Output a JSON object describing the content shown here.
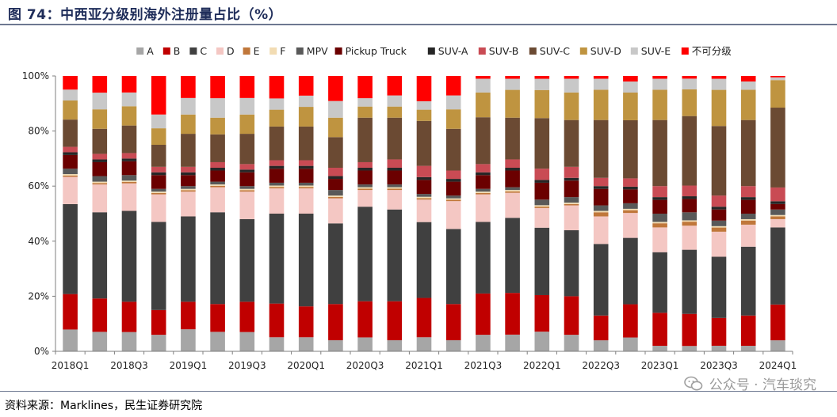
{
  "figure_title": "图 74：中西亚分级别海外注册量占比（%）",
  "source_text": "资料来源：Marklines，民生证券研究院",
  "watermark": "公众号 · 汽车琰究",
  "chart_data": {
    "type": "bar",
    "stacked": true,
    "ylim": [
      0,
      100
    ],
    "yticks": [
      "0%",
      "20%",
      "40%",
      "60%",
      "80%",
      "100%"
    ],
    "xtick_labels": [
      "2018Q1",
      "2018Q3",
      "2019Q1",
      "2019Q3",
      "2020Q1",
      "2020Q3",
      "2021Q1",
      "2021Q3",
      "2022Q1",
      "2022Q3",
      "2023Q1",
      "2023Q3",
      "2024Q1"
    ],
    "legend_position": "top",
    "categories": [
      "2018Q1",
      "2018Q2",
      "2018Q3",
      "2018Q4",
      "2019Q1",
      "2019Q2",
      "2019Q3",
      "2019Q4",
      "2020Q1",
      "2020Q2",
      "2020Q3",
      "2020Q4",
      "2021Q1",
      "2021Q2",
      "2021Q3",
      "2021Q4",
      "2022Q1",
      "2022Q2",
      "2022Q3",
      "2022Q4",
      "2023Q1",
      "2023Q2",
      "2023Q3",
      "2023Q4",
      "2024Q1"
    ],
    "series": [
      {
        "name": "A",
        "color": "#a6a6a6",
        "values": [
          8,
          7,
          7,
          6,
          8,
          7,
          7,
          5,
          5,
          4,
          5,
          4,
          5,
          4,
          6,
          6,
          7,
          6,
          4,
          5,
          2,
          2,
          2,
          2,
          4
        ]
      },
      {
        "name": "B",
        "color": "#c00000",
        "values": [
          13,
          12,
          11,
          9,
          10,
          10,
          11,
          12,
          11,
          13,
          13,
          14,
          14,
          13,
          15,
          15,
          13,
          14,
          9,
          12,
          12,
          12,
          10,
          11,
          13
        ]
      },
      {
        "name": "C",
        "color": "#404040",
        "values": [
          33,
          31,
          33,
          32,
          31,
          33,
          30,
          32,
          33,
          29,
          34,
          33,
          27,
          27,
          26,
          27,
          24,
          24,
          26,
          24,
          22,
          24,
          22,
          25,
          28
        ]
      },
      {
        "name": "D",
        "color": "#f4c7c3",
        "values": [
          10,
          10,
          10,
          10,
          9,
          9,
          10,
          9,
          9,
          9,
          6,
          7,
          8,
          10,
          10,
          9,
          7,
          9,
          10,
          9,
          9,
          9,
          9,
          8,
          3
        ]
      },
      {
        "name": "E",
        "color": "#c0773a",
        "values": [
          0.5,
          0.5,
          0.5,
          0.5,
          0.5,
          0.5,
          0.5,
          0.5,
          0.5,
          0.5,
          0.5,
          0.5,
          0.5,
          0.5,
          0.5,
          0.5,
          0.5,
          0.5,
          1.5,
          1,
          1.5,
          1.5,
          1.5,
          1.5,
          1
        ]
      },
      {
        "name": "F",
        "color": "#f2dcb3",
        "values": [
          0.5,
          0.5,
          0.5,
          0.5,
          0.5,
          0.5,
          0.5,
          0.5,
          0.5,
          0.5,
          0.5,
          0.5,
          0.5,
          0.5,
          0.5,
          0.5,
          0.5,
          0.5,
          0.5,
          0.5,
          0.5,
          0.5,
          0.5,
          0.5,
          0.5
        ]
      },
      {
        "name": "MPV",
        "color": "#595959",
        "values": [
          2,
          2,
          2,
          1,
          1,
          1,
          1,
          1,
          1,
          2,
          1,
          1,
          1,
          1,
          1,
          1,
          2,
          2,
          2,
          2,
          3,
          3,
          2,
          2,
          2
        ]
      },
      {
        "name": "Pickup Truck",
        "color": "#6b0000",
        "values": [
          5,
          5,
          5,
          5,
          4,
          4,
          5,
          5,
          5,
          4,
          5,
          5,
          5,
          5,
          5,
          6,
          6,
          6,
          6,
          5,
          5,
          5,
          4,
          5,
          2
        ]
      },
      {
        "name": "SUV-A",
        "color": "#262626",
        "values": [
          1,
          1,
          1,
          1,
          1,
          1,
          1,
          1,
          1,
          1,
          1,
          1,
          1,
          1,
          1,
          1,
          1,
          1,
          1,
          1,
          1,
          1,
          1,
          1,
          1
        ]
      },
      {
        "name": "SUV-B",
        "color": "#c94b54",
        "values": [
          2,
          2,
          2,
          2,
          2,
          2,
          2,
          2,
          2,
          3,
          2,
          3,
          4,
          3,
          3,
          3,
          4,
          4,
          3,
          3,
          4,
          4,
          4,
          4,
          5
        ]
      },
      {
        "name": "SUV-C",
        "color": "#6b4a33",
        "values": [
          10,
          9,
          10,
          8,
          12,
          10,
          11,
          12,
          12,
          11,
          16,
          15,
          16,
          15,
          17,
          15,
          18,
          17,
          21,
          21,
          24,
          26,
          25,
          24,
          29
        ]
      },
      {
        "name": "SUV-D",
        "color": "#bf9440",
        "values": [
          7,
          7,
          7,
          6,
          7,
          6,
          7,
          6,
          7,
          7,
          4,
          4,
          4,
          7,
          9,
          10,
          10,
          10,
          11,
          10,
          11,
          10,
          13,
          11,
          10
        ]
      },
      {
        "name": "SUV-E",
        "color": "#c8c8c8",
        "values": [
          4,
          6,
          5,
          5,
          6,
          7,
          6,
          4,
          4,
          6,
          3,
          4,
          3,
          5,
          5,
          4,
          4,
          5,
          4,
          4,
          4,
          4,
          4,
          3,
          1
        ]
      },
      {
        "name": "不可分级",
        "color": "#ff0000",
        "values": [
          5,
          6,
          6,
          14,
          8,
          8,
          8,
          8,
          7,
          9,
          8,
          7,
          9,
          7,
          1,
          1,
          1,
          1,
          1,
          2,
          1,
          1,
          1,
          2,
          0.5
        ]
      }
    ]
  }
}
